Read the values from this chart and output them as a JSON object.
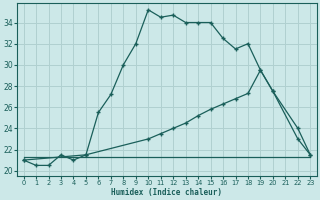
{
  "xlabel": "Humidex (Indice chaleur)",
  "background_color": "#cce8e8",
  "grid_color": "#b0d0d0",
  "line_color": "#1a5f5a",
  "xlim": [
    -0.5,
    23.5
  ],
  "ylim": [
    19.5,
    35.8
  ],
  "xticks": [
    0,
    1,
    2,
    3,
    4,
    5,
    6,
    7,
    8,
    9,
    10,
    11,
    12,
    13,
    14,
    15,
    16,
    17,
    18,
    19,
    20,
    21,
    22,
    23
  ],
  "yticks": [
    20,
    22,
    24,
    26,
    28,
    30,
    32,
    34
  ],
  "curve1_x": [
    0,
    1,
    2,
    3,
    4,
    5,
    6,
    7,
    8,
    9,
    10,
    11,
    12,
    13,
    14,
    15,
    16,
    17,
    18,
    19,
    20,
    22,
    23
  ],
  "curve1_y": [
    21.0,
    20.5,
    20.5,
    21.5,
    21.0,
    21.5,
    25.5,
    27.2,
    30.0,
    32.0,
    35.2,
    34.5,
    34.7,
    34.0,
    34.0,
    34.0,
    32.5,
    31.5,
    32.0,
    29.5,
    27.5,
    23.0,
    21.5
  ],
  "curve2_x": [
    0,
    5,
    10,
    11,
    12,
    13,
    14,
    15,
    16,
    17,
    18,
    19,
    20,
    22,
    23
  ],
  "curve2_y": [
    21.0,
    21.5,
    23.0,
    23.5,
    24.0,
    24.5,
    25.2,
    25.8,
    26.3,
    26.8,
    27.3,
    29.5,
    27.5,
    24.0,
    21.5
  ],
  "curve3_x": [
    0,
    23
  ],
  "curve3_y": [
    21.3,
    21.3
  ]
}
